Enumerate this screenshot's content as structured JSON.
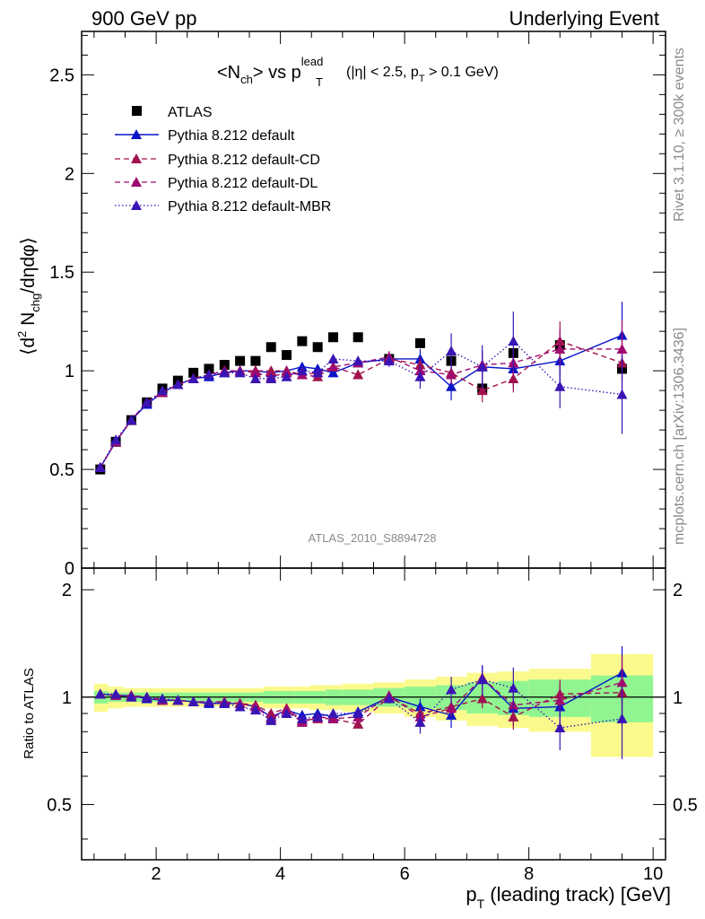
{
  "header": {
    "left": "900 GeV pp",
    "right": "Underlying Event"
  },
  "side_text": {
    "rivet": "Rivet 3.1.10, ≥ 300k events",
    "site": "mcplots.cern.ch [arXiv:1306.3436]"
  },
  "plot_title": {
    "main": "<N",
    "main_sub": "ch",
    "mid": "> vs p",
    "p_sup": "lead",
    "p_sub": "T",
    "cuts_a": "(|η| < 2.5, p",
    "cuts_sub": "T",
    "cuts_b": " > 0.1 GeV)"
  },
  "analysis_id": "ATLAS_2010_S8894728",
  "ylabel_main": {
    "a": "⟨d",
    "sup": "2",
    "b": " N",
    "sub": "chg",
    "c": "/dηdφ⟩"
  },
  "ylabel_ratio": "Ratio to ATLAS",
  "xlabel": {
    "a": "p",
    "sub": "T",
    "b": " (leading track) [GeV]"
  },
  "colors": {
    "atlas": "#000000",
    "default": "#0a14c8",
    "cd": "#a0124e",
    "dl": "#a00a6e",
    "mbr": "#3a14b4",
    "band_stat": "#90f590",
    "band_total": "#fafa8c"
  },
  "chart_data": [
    {
      "type": "scatter",
      "panel": "main",
      "xlim": [
        0.8,
        10.2
      ],
      "ylim": [
        0,
        2.72
      ],
      "x_ticks": [
        2,
        4,
        6,
        8,
        10
      ],
      "y_ticks": [
        0,
        0.5,
        1,
        1.5,
        2,
        2.5
      ],
      "x": [
        1.1,
        1.35,
        1.6,
        1.85,
        2.1,
        2.35,
        2.6,
        2.85,
        3.1,
        3.35,
        3.6,
        3.85,
        4.1,
        4.35,
        4.6,
        4.85,
        5.25,
        5.75,
        6.25,
        6.75,
        7.25,
        7.75,
        8.5,
        9.5
      ],
      "series": [
        {
          "name": "ATLAS",
          "style": "marker",
          "values": [
            0.5,
            0.64,
            0.75,
            0.84,
            0.91,
            0.95,
            0.99,
            1.01,
            1.03,
            1.05,
            1.05,
            1.12,
            1.08,
            1.15,
            1.12,
            1.17,
            1.17,
            1.06,
            1.14,
            1.05,
            0.91,
            1.09,
            1.13,
            1.01
          ]
        },
        {
          "name": "Pythia 8.212 default",
          "style": "solid",
          "values": [
            0.51,
            0.64,
            0.75,
            0.83,
            0.89,
            0.93,
            0.96,
            0.97,
            0.99,
            1.0,
            1.0,
            0.99,
            1.0,
            1.02,
            1.01,
            0.99,
            1.04,
            1.06,
            1.06,
            0.92,
            1.02,
            1.01,
            1.05,
            1.18
          ],
          "errors": [
            0,
            0,
            0,
            0,
            0,
            0,
            0,
            0,
            0,
            0,
            0,
            0,
            0,
            0,
            0,
            0,
            0.02,
            0.03,
            0.05,
            0.07,
            0.08,
            0.1,
            0.12,
            0.17
          ]
        },
        {
          "name": "Pythia 8.212 default-CD",
          "style": "dashed",
          "values": [
            0.51,
            0.64,
            0.75,
            0.84,
            0.89,
            0.93,
            0.96,
            0.98,
            1.0,
            1.0,
            1.0,
            1.0,
            1.0,
            0.98,
            0.97,
            1.02,
            0.98,
            1.06,
            1.03,
            0.99,
            0.9,
            0.96,
            1.15,
            1.04
          ],
          "errors": [
            0,
            0,
            0,
            0,
            0,
            0,
            0,
            0,
            0,
            0,
            0,
            0,
            0,
            0,
            0,
            0,
            0.02,
            0.03,
            0.04,
            0.05,
            0.06,
            0.07,
            0.1,
            0.15
          ]
        },
        {
          "name": "Pythia 8.212 default-DL",
          "style": "dashed",
          "values": [
            0.51,
            0.64,
            0.75,
            0.84,
            0.89,
            0.93,
            0.96,
            0.98,
            1.0,
            1.0,
            0.99,
            0.97,
            0.99,
            0.98,
            0.99,
            1.02,
            1.04,
            1.07,
            1.0,
            0.98,
            1.03,
            1.04,
            1.11,
            1.11
          ],
          "errors": [
            0,
            0,
            0,
            0,
            0,
            0,
            0,
            0,
            0,
            0,
            0,
            0,
            0,
            0,
            0,
            0,
            0.02,
            0.03,
            0.04,
            0.05,
            0.06,
            0.07,
            0.1,
            0.15
          ]
        },
        {
          "name": "Pythia 8.212 default-MBR",
          "style": "dotted",
          "values": [
            0.51,
            0.65,
            0.75,
            0.84,
            0.9,
            0.93,
            0.96,
            0.98,
            0.99,
            0.99,
            0.96,
            0.96,
            0.97,
            1.0,
            0.99,
            1.06,
            1.05,
            1.05,
            0.97,
            1.1,
            1.02,
            1.15,
            0.92,
            0.88
          ],
          "errors": [
            0,
            0,
            0,
            0,
            0,
            0,
            0,
            0,
            0,
            0,
            0,
            0,
            0,
            0,
            0,
            0,
            0.02,
            0.03,
            0.06,
            0.09,
            0.11,
            0.15,
            0.11,
            0.2
          ]
        }
      ]
    },
    {
      "type": "line",
      "panel": "ratio",
      "xlim": [
        0.8,
        10.2
      ],
      "ylim": [
        0.35,
        2.3
      ],
      "x_ticks": [
        2,
        4,
        6,
        8,
        10
      ],
      "y_ticks": [
        0.5,
        1,
        2
      ],
      "reference_line": 1,
      "bands": {
        "edges": [
          1.0,
          1.225,
          1.475,
          1.725,
          1.975,
          2.225,
          2.475,
          2.725,
          2.975,
          3.225,
          3.475,
          3.725,
          3.975,
          4.225,
          4.475,
          4.725,
          5.0,
          5.5,
          6.0,
          6.5,
          7.0,
          7.5,
          8.0,
          9.0,
          10.0
        ],
        "stat": [
          0.04,
          0.03,
          0.03,
          0.03,
          0.03,
          0.03,
          0.03,
          0.03,
          0.03,
          0.03,
          0.03,
          0.04,
          0.04,
          0.04,
          0.04,
          0.05,
          0.05,
          0.06,
          0.07,
          0.08,
          0.1,
          0.11,
          0.12,
          0.15
        ],
        "total": [
          0.09,
          0.07,
          0.06,
          0.06,
          0.06,
          0.06,
          0.06,
          0.06,
          0.06,
          0.06,
          0.06,
          0.07,
          0.07,
          0.07,
          0.08,
          0.08,
          0.09,
          0.1,
          0.12,
          0.14,
          0.17,
          0.18,
          0.2,
          0.32
        ]
      },
      "series": [
        {
          "name": "Pythia 8.212 default",
          "style": "solid",
          "values": [
            1.02,
            1.01,
            1.01,
            0.99,
            0.98,
            0.98,
            0.97,
            0.96,
            0.96,
            0.96,
            0.94,
            0.88,
            0.92,
            0.89,
            0.9,
            0.88,
            0.91,
            1.0,
            0.94,
            0.89,
            1.13,
            0.93,
            0.94,
            1.17
          ],
          "errors": [
            0,
            0,
            0,
            0,
            0,
            0,
            0,
            0,
            0,
            0,
            0,
            0,
            0,
            0,
            0,
            0,
            0.02,
            0.03,
            0.05,
            0.07,
            0.09,
            0.1,
            0.12,
            0.22
          ]
        },
        {
          "name": "Pythia 8.212 default-CD",
          "style": "dashed",
          "values": [
            1.02,
            1.01,
            1.01,
            1.0,
            0.98,
            0.98,
            0.97,
            0.97,
            0.97,
            0.96,
            0.95,
            0.9,
            0.93,
            0.86,
            0.87,
            0.87,
            0.84,
            1.0,
            0.9,
            0.94,
            0.99,
            0.88,
            1.02,
            1.03
          ],
          "errors": [
            0,
            0,
            0,
            0,
            0,
            0,
            0,
            0,
            0,
            0,
            0,
            0,
            0,
            0,
            0,
            0,
            0.02,
            0.03,
            0.04,
            0.05,
            0.06,
            0.07,
            0.1,
            0.2
          ]
        },
        {
          "name": "Pythia 8.212 default-DL",
          "style": "dashed",
          "values": [
            1.02,
            1.01,
            1.01,
            1.0,
            0.98,
            0.98,
            0.97,
            0.97,
            0.97,
            0.96,
            0.94,
            0.87,
            0.92,
            0.85,
            0.88,
            0.87,
            0.88,
            1.01,
            0.88,
            0.93,
            1.13,
            0.95,
            0.98,
            1.1
          ],
          "errors": [
            0,
            0,
            0,
            0,
            0,
            0,
            0,
            0,
            0,
            0,
            0,
            0,
            0,
            0,
            0,
            0,
            0.02,
            0.03,
            0.04,
            0.05,
            0.06,
            0.07,
            0.1,
            0.2
          ]
        },
        {
          "name": "Pythia 8.212 default-MBR",
          "style": "dotted",
          "values": [
            1.02,
            1.02,
            1.0,
            1.0,
            0.99,
            0.98,
            0.97,
            0.97,
            0.96,
            0.94,
            0.92,
            0.86,
            0.9,
            0.87,
            0.88,
            0.9,
            0.9,
            0.99,
            0.85,
            1.05,
            1.12,
            1.06,
            0.82,
            0.87
          ],
          "errors": [
            0,
            0,
            0,
            0,
            0,
            0,
            0,
            0,
            0,
            0,
            0,
            0,
            0,
            0,
            0,
            0,
            0.02,
            0.03,
            0.06,
            0.09,
            0.11,
            0.15,
            0.11,
            0.2
          ]
        }
      ]
    }
  ]
}
